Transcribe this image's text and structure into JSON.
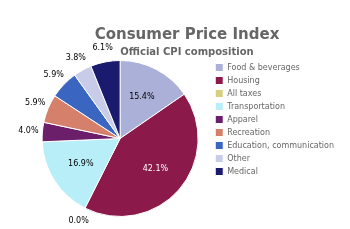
{
  "chart_data": {
    "type": "pie",
    "title": "Consumer Price Index",
    "subtitle": "Official CPI composition",
    "categories": [
      "Food & beverages",
      "Housing",
      "All taxes",
      "Transportation",
      "Apparel",
      "Recreation",
      "Education, communication",
      "Other",
      "Medical"
    ],
    "values": [
      15.4,
      42.1,
      0.0,
      16.9,
      4.0,
      5.9,
      5.9,
      3.8,
      6.1
    ],
    "value_labels": [
      "15.4%",
      "42.1%",
      "0.0%",
      "16.9%",
      "4.0%",
      "5.9%",
      "5.9%",
      "3.8%",
      "6.1%"
    ],
    "colors": [
      "#aab0d8",
      "#8b1a4a",
      "#d4d080",
      "#b8eef8",
      "#6b1f6b",
      "#d4806a",
      "#3a65c0",
      "#c8cce8",
      "#1a1a6e"
    ],
    "data_labels": true,
    "legend": "right"
  }
}
